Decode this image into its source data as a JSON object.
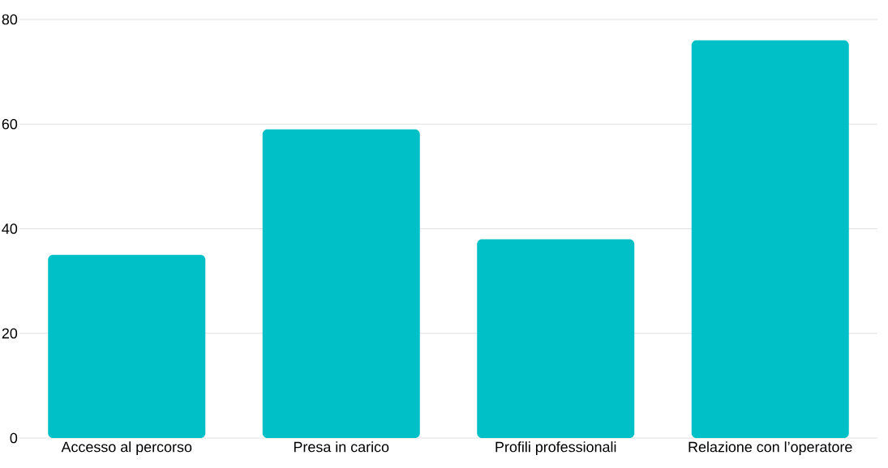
{
  "chart_data": {
    "type": "bar",
    "categories": [
      "Accesso al percorso",
      "Presa in carico",
      "Profili professionali",
      "Relazione con l’operatore"
    ],
    "values": [
      35,
      59,
      38,
      76
    ],
    "color": "#00c0c7",
    "ylim": [
      0,
      80
    ],
    "yticks": [
      0,
      20,
      40,
      60,
      80
    ],
    "grid": "y"
  }
}
